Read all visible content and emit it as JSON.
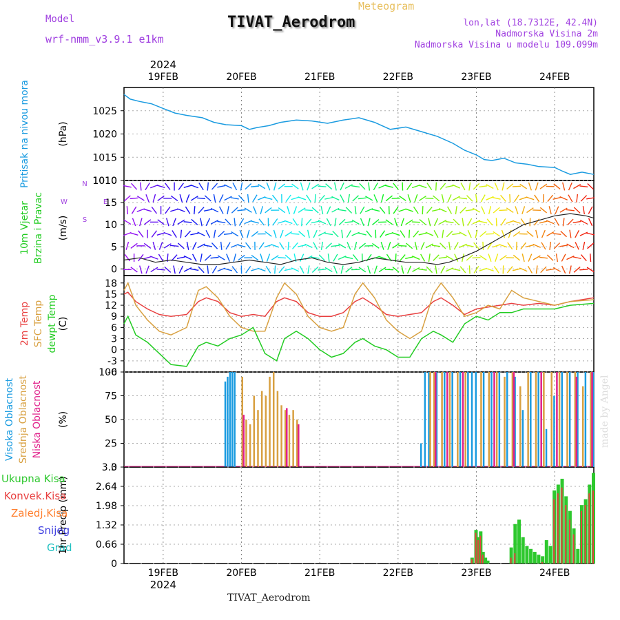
{
  "header": {
    "model_label": "Model",
    "model_name": "wrf-nmm_v3.9.1 e1km",
    "type": "Meteogram",
    "station": "TIVAT_Aerodrom",
    "lonlat": "lon,lat (18.7312E, 42.4N)",
    "elevation": "Nadmorska Visina 2m",
    "model_elevation": "Nadmorska Visina u modelu 109.099m",
    "year": "2024",
    "watermark": "made by Angel",
    "footer": "TIVAT_Aerodrom"
  },
  "colors": {
    "pressure": "#1a9be0",
    "t2m": "#e84040",
    "sfc": "#d8a040",
    "dewpt": "#22cc22",
    "high_cloud": "#1a9be0",
    "mid_cloud": "#d8a040",
    "low_cloud": "#e0208a",
    "total_precip": "#2ec82e",
    "conv_precip": "#e84040",
    "frz_precip": "#ff8030",
    "snow": "#4040e0",
    "hail": "#20c0c0"
  },
  "chart_data": [
    {
      "type": "line",
      "name": "pressure",
      "ylabel": [
        "Pritisak na nivou mora",
        "(hPa)"
      ],
      "ylim": [
        1010,
        1030
      ],
      "yticks": [
        1010,
        1015,
        1020,
        1025
      ],
      "x_days": [
        0,
        1,
        2,
        3,
        4,
        5
      ],
      "x_labels": [
        "19FEB",
        "20FEB",
        "21FEB",
        "22FEB",
        "23FEB",
        "24FEB"
      ],
      "x_start": -0.5,
      "x_end": 5.5,
      "series": [
        {
          "name": "Pritisak na nivou mora",
          "x": [
            -0.5,
            -0.42,
            -0.3,
            -0.15,
            0,
            0.15,
            0.3,
            0.5,
            0.65,
            0.8,
            1,
            1.1,
            1.2,
            1.35,
            1.5,
            1.7,
            1.9,
            2.1,
            2.3,
            2.5,
            2.7,
            2.9,
            3.1,
            3.3,
            3.5,
            3.7,
            3.85,
            4,
            4.1,
            4.2,
            4.35,
            4.5,
            4.65,
            4.8,
            5.0,
            5.1,
            5.2,
            5.35,
            5.5
          ],
          "values": [
            1028.5,
            1027.5,
            1027,
            1026.5,
            1025.5,
            1024.5,
            1024,
            1023.5,
            1022.5,
            1022,
            1021.8,
            1021,
            1021.4,
            1021.8,
            1022.5,
            1023,
            1022.8,
            1022.3,
            1023,
            1023.5,
            1022.5,
            1021,
            1021.5,
            1020.5,
            1019.5,
            1018,
            1016.5,
            1015.5,
            1014.5,
            1014.3,
            1014.8,
            1013.8,
            1013.5,
            1013,
            1012.8,
            1012,
            1011.3,
            1011.8,
            1011.3
          ]
        }
      ]
    },
    {
      "type": "scatter",
      "name": "wind",
      "ylabel": [
        "10m Vjetar",
        "Brzina i Pravac",
        "(m/s)"
      ],
      "ylim": [
        -1.5,
        20
      ],
      "yticks": [
        0,
        5,
        10,
        15
      ],
      "top_label": "1010",
      "compass": [
        "N",
        "W",
        "E",
        "S"
      ],
      "series": [
        {
          "name": "speed",
          "x": [
            -0.5,
            -0.3,
            -0.1,
            0.1,
            0.3,
            0.5,
            0.7,
            0.9,
            1.1,
            1.3,
            1.5,
            1.7,
            1.9,
            2.1,
            2.3,
            2.5,
            2.7,
            2.9,
            3.1,
            3.3,
            3.5,
            3.65,
            3.8,
            4,
            4.2,
            4.4,
            4.6,
            4.8,
            5,
            5.2,
            5.4,
            5.5
          ],
          "values": [
            2,
            2.5,
            1.5,
            2,
            1.5,
            1,
            1,
            1.5,
            2,
            1.5,
            1,
            2,
            2.5,
            1.5,
            1,
            1.5,
            2.5,
            2,
            1.5,
            1.5,
            1,
            1.5,
            2.5,
            4,
            6,
            8,
            10,
            11,
            12,
            12.5,
            12,
            11.5
          ]
        }
      ]
    },
    {
      "type": "line",
      "name": "temperature",
      "ylabel": [
        "2m Temp",
        "SFC Temp",
        "dewpt Temp",
        "(C)"
      ],
      "ylim": [
        -6,
        20
      ],
      "yticks": [
        -6,
        -3,
        0,
        3,
        6,
        9,
        12,
        15,
        18
      ],
      "series": [
        {
          "name": "2m Temp",
          "x": [
            -0.5,
            -0.45,
            -0.35,
            -0.2,
            -0.05,
            0.1,
            0.3,
            0.45,
            0.55,
            0.7,
            0.85,
            1,
            1.15,
            1.3,
            1.45,
            1.55,
            1.7,
            1.85,
            2,
            2.15,
            2.3,
            2.45,
            2.55,
            2.7,
            2.85,
            3,
            3.15,
            3.3,
            3.45,
            3.55,
            3.7,
            3.85,
            4,
            4.15,
            4.3,
            4.45,
            4.6,
            4.8,
            5,
            5.2,
            5.5
          ],
          "values": [
            15,
            15.5,
            13,
            11,
            9.5,
            9,
            9.5,
            13,
            14,
            13,
            10,
            9,
            9.5,
            9,
            13,
            14,
            13,
            10,
            9,
            9,
            10,
            13,
            14,
            12,
            9.5,
            9,
            9.5,
            10,
            13,
            14,
            12,
            9.5,
            11,
            11.5,
            12,
            12.5,
            12,
            12.5,
            12,
            13,
            14
          ]
        },
        {
          "name": "SFC Temp",
          "x": [
            -0.5,
            -0.45,
            -0.35,
            -0.2,
            -0.05,
            0.1,
            0.3,
            0.45,
            0.55,
            0.7,
            0.85,
            1,
            1.15,
            1.3,
            1.45,
            1.55,
            1.7,
            1.85,
            2,
            2.15,
            2.3,
            2.45,
            2.55,
            2.7,
            2.85,
            3,
            3.15,
            3.3,
            3.45,
            3.55,
            3.7,
            3.85,
            4,
            4.15,
            4.3,
            4.45,
            4.6,
            4.8,
            5,
            5.2,
            5.5
          ],
          "values": [
            16,
            18,
            12,
            8,
            5,
            4,
            6,
            16,
            17,
            14,
            9,
            6,
            5,
            5,
            14,
            18,
            15,
            9,
            6,
            5,
            6,
            15,
            18,
            14,
            8,
            5,
            3,
            5,
            15,
            18,
            14,
            9,
            10,
            12,
            11,
            16,
            14,
            13,
            12,
            13,
            13.5
          ]
        },
        {
          "name": "dewpt Temp",
          "x": [
            -0.5,
            -0.45,
            -0.35,
            -0.2,
            -0.05,
            0.1,
            0.3,
            0.45,
            0.55,
            0.7,
            0.85,
            1,
            1.15,
            1.3,
            1.45,
            1.55,
            1.7,
            1.85,
            2,
            2.15,
            2.3,
            2.45,
            2.55,
            2.7,
            2.85,
            3,
            3.15,
            3.3,
            3.45,
            3.55,
            3.7,
            3.85,
            4,
            4.15,
            4.3,
            4.45,
            4.6,
            4.8,
            5,
            5.2,
            5.5
          ],
          "values": [
            7,
            9,
            4,
            2,
            -1,
            -4,
            -4.5,
            1,
            2,
            1,
            3,
            4,
            6,
            -1,
            -3,
            3,
            5,
            3,
            0,
            -2,
            -1,
            2,
            3,
            1,
            0,
            -2,
            -2,
            3,
            5,
            4,
            2,
            7,
            9,
            8,
            10,
            10,
            11,
            11,
            11,
            12,
            12.5
          ]
        }
      ]
    },
    {
      "type": "bar",
      "name": "clouds",
      "ylabel": [
        "Visoka Oblacnost",
        "Srednja Oblacnost",
        "Niska Oblacnost",
        "(%)"
      ],
      "ylim": [
        0,
        100
      ],
      "yticks": [
        0,
        25,
        50,
        75,
        100
      ],
      "series": [
        {
          "name": "Visoka Oblacnost",
          "x": [
            0.8,
            0.83,
            0.86,
            0.89,
            0.92,
            3.3,
            3.35,
            3.4,
            3.5,
            3.6,
            3.7,
            3.8,
            3.9,
            3.95,
            4,
            4.1,
            4.2,
            4.3,
            4.4,
            4.5,
            4.6,
            4.7,
            4.8,
            4.9,
            5,
            5.1,
            5.2,
            5.3,
            5.4,
            5.5
          ],
          "values": [
            90,
            95,
            100,
            100,
            100,
            25,
            100,
            100,
            100,
            100,
            100,
            100,
            100,
            100,
            100,
            100,
            100,
            100,
            100,
            95,
            60,
            100,
            100,
            40,
            75,
            100,
            100,
            100,
            100,
            100
          ]
        },
        {
          "name": "Srednja Oblacnost",
          "x": [
            1.0,
            1.05,
            1.1,
            1.15,
            1.2,
            1.25,
            1.3,
            1.35,
            1.4,
            1.45,
            1.5,
            1.55,
            1.6,
            1.65,
            1.7,
            3.4,
            3.45,
            3.55,
            3.65,
            3.75,
            3.85,
            4.05,
            4.15,
            4.25,
            4.35,
            4.45,
            4.55,
            4.65,
            4.75,
            4.85,
            4.95,
            5.05,
            5.15,
            5.25,
            5.35,
            5.45
          ],
          "values": [
            95,
            50,
            45,
            75,
            60,
            80,
            75,
            95,
            100,
            80,
            65,
            60,
            55,
            60,
            50,
            100,
            100,
            100,
            100,
            100,
            100,
            100,
            100,
            100,
            95,
            100,
            85,
            100,
            100,
            100,
            100,
            100,
            100,
            100,
            85,
            100
          ]
        },
        {
          "name": "Niska Oblacnost",
          "x": [
            1.0,
            1.55,
            1.7,
            3.45,
            3.6,
            3.8,
            4.2,
            4.45,
            4.8,
            5.0,
            5.25,
            5.45
          ],
          "values": [
            55,
            62,
            45,
            100,
            100,
            100,
            100,
            100,
            100,
            100,
            95,
            100
          ]
        }
      ]
    },
    {
      "type": "bar",
      "name": "precip",
      "ylabel": [
        "1hr Precip (mm)"
      ],
      "ylim": [
        0,
        3.3
      ],
      "yticks": [
        0,
        0.66,
        1.32,
        1.98,
        2.64,
        3.3
      ],
      "legend": [
        "Ukupna Kisa",
        "Konvek.Kisa",
        "Zaledj.Kisa",
        "Snijeg",
        "Grad"
      ],
      "series": [
        {
          "name": "Ukupna Kisa",
          "x": [
            3.95,
            4.0,
            4.03,
            4.06,
            4.09,
            4.12,
            4.15,
            4.45,
            4.5,
            4.55,
            4.6,
            4.65,
            4.7,
            4.75,
            4.8,
            4.85,
            4.9,
            4.95,
            5.0,
            5.05,
            5.1,
            5.15,
            5.2,
            5.25,
            5.3,
            5.35,
            5.4,
            5.45,
            5.5
          ],
          "values": [
            0.2,
            1.15,
            0.9,
            1.1,
            0.4,
            0.2,
            0.1,
            0.55,
            1.35,
            1.5,
            0.9,
            0.6,
            0.5,
            0.4,
            0.3,
            0.25,
            0.8,
            0.6,
            2.5,
            2.7,
            2.9,
            2.3,
            1.8,
            1.2,
            0.5,
            2.0,
            2.2,
            2.7,
            3.1
          ]
        },
        {
          "name": "Konvek.Kisa",
          "x": [
            3.95,
            4.0,
            4.03,
            4.06,
            4.09,
            4.45,
            4.5,
            4.85,
            5.0,
            5.05,
            5.1,
            5.15,
            5.2,
            5.25,
            5.35,
            5.4,
            5.45,
            5.5
          ],
          "values": [
            0.15,
            1.05,
            0.8,
            0.95,
            0.3,
            0.2,
            0.35,
            0.05,
            2.2,
            2.4,
            2.6,
            2.0,
            1.5,
            1.0,
            1.8,
            2.0,
            2.4,
            2.5
          ]
        }
      ]
    }
  ]
}
